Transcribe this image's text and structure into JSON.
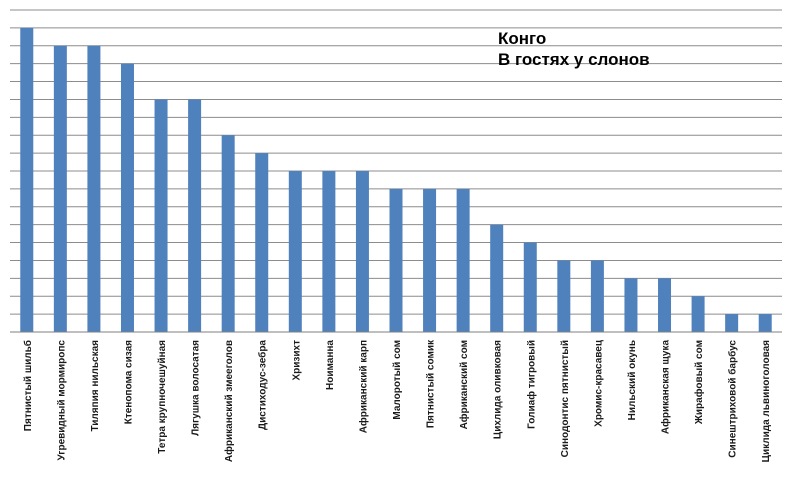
{
  "chart_data": {
    "type": "bar",
    "title_lines": [
      "Конго",
      "В гостях у слонов"
    ],
    "categories": [
      "Пятнистый шильб",
      "Угревидный мормиропс",
      "Тиляпия нильская",
      "Ктенопома сизая",
      "Тетра крупночешуйная",
      "Лягушка волосатая",
      "Африканский змееголов",
      "Дистиходус-зебра",
      "Хризихт",
      "Ноиманна",
      "Африканский карп",
      "Малоротый сом",
      "Пятнистый сомик",
      "Африканский сом",
      "Цихлида оливковая",
      "Голиаф тигровый",
      "Синодонтис пятнистый",
      "Хромис-красавец",
      "Нильский окунь",
      "Африканская щука",
      "Жирафовый сом",
      "Синештриховой барбус",
      "Циклида львиноголовая"
    ],
    "values": [
      8.5,
      8,
      8,
      7.5,
      6.5,
      6.5,
      5.5,
      5,
      4.5,
      4.5,
      4.5,
      4,
      4,
      4,
      3,
      2.5,
      2,
      2,
      1.5,
      1.5,
      1,
      0.5,
      0.5
    ],
    "ylim": [
      0,
      9
    ],
    "y_step": 0.5,
    "grid": true,
    "colors": {
      "bar": "#4f81bd",
      "grid": "#8c8c8c",
      "axis": "#7f7f7f",
      "background": "#ffffff"
    }
  }
}
